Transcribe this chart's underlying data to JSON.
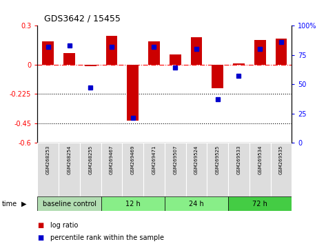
{
  "title": "GDS3642 / 15455",
  "samples": [
    "GSM268253",
    "GSM268254",
    "GSM268255",
    "GSM269467",
    "GSM269469",
    "GSM269471",
    "GSM269507",
    "GSM269524",
    "GSM269525",
    "GSM269533",
    "GSM269534",
    "GSM269535"
  ],
  "log_ratio": [
    0.18,
    0.09,
    -0.01,
    0.22,
    -0.43,
    0.18,
    0.08,
    0.21,
    -0.18,
    0.01,
    0.19,
    0.2
  ],
  "percentile_rank": [
    82,
    83,
    47,
    82,
    21,
    82,
    64,
    80,
    37,
    57,
    80,
    86
  ],
  "bar_color": "#cc0000",
  "dot_color": "#0000cc",
  "ylim_left": [
    -0.6,
    0.3
  ],
  "ylim_right": [
    0,
    100
  ],
  "yticks_left": [
    0.3,
    0.0,
    -0.225,
    -0.45,
    -0.6
  ],
  "ytick_labels_left": [
    "0.3",
    "0",
    "-0.225",
    "-0.45",
    "-0.6"
  ],
  "yticks_right": [
    100,
    75,
    50,
    25,
    0
  ],
  "ytick_labels_right": [
    "100%",
    "75",
    "50",
    "25",
    "0"
  ],
  "groups": [
    {
      "label": "baseline control",
      "start": 0,
      "end": 3,
      "color": "#b2ddb2"
    },
    {
      "label": "12 h",
      "start": 3,
      "end": 6,
      "color": "#88ee88"
    },
    {
      "label": "24 h",
      "start": 6,
      "end": 9,
      "color": "#88ee88"
    },
    {
      "label": "72 h",
      "start": 9,
      "end": 12,
      "color": "#44cc44"
    }
  ],
  "time_label": "time",
  "legend_logratio": "log ratio",
  "legend_percentile": "percentile rank within the sample",
  "bg_color": "#ffffff"
}
